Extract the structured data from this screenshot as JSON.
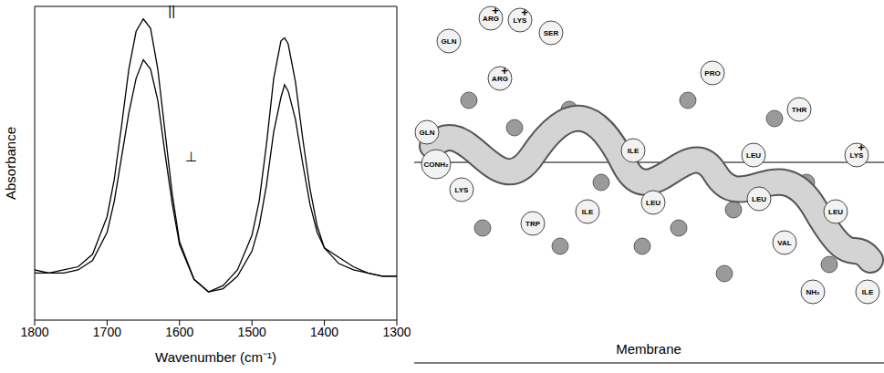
{
  "chart_data": {
    "type": "line",
    "xlabel": "Wavenumber (cm⁻¹)",
    "ylabel": "Absorbance",
    "x": [
      1800,
      1780,
      1760,
      1740,
      1720,
      1700,
      1690,
      1680,
      1670,
      1660,
      1650,
      1640,
      1630,
      1620,
      1610,
      1600,
      1580,
      1560,
      1540,
      1520,
      1500,
      1490,
      1480,
      1470,
      1460,
      1455,
      1450,
      1440,
      1430,
      1420,
      1410,
      1400,
      1380,
      1360,
      1340,
      1320,
      1300
    ],
    "series": [
      {
        "name": "||",
        "color": "#000000",
        "values": [
          0.16,
          0.15,
          0.16,
          0.17,
          0.21,
          0.33,
          0.45,
          0.62,
          0.8,
          0.92,
          0.96,
          0.93,
          0.8,
          0.6,
          0.4,
          0.25,
          0.13,
          0.09,
          0.11,
          0.16,
          0.27,
          0.38,
          0.56,
          0.77,
          0.89,
          0.9,
          0.88,
          0.76,
          0.58,
          0.42,
          0.3,
          0.23,
          0.18,
          0.16,
          0.15,
          0.14,
          0.14
        ]
      },
      {
        "name": "⊥",
        "color": "#000000",
        "values": [
          0.15,
          0.15,
          0.15,
          0.16,
          0.19,
          0.28,
          0.38,
          0.52,
          0.66,
          0.77,
          0.83,
          0.8,
          0.7,
          0.53,
          0.37,
          0.24,
          0.13,
          0.09,
          0.1,
          0.14,
          0.22,
          0.3,
          0.43,
          0.6,
          0.71,
          0.75,
          0.73,
          0.64,
          0.5,
          0.37,
          0.28,
          0.23,
          0.2,
          0.17,
          0.15,
          0.14,
          0.14
        ]
      }
    ],
    "xlim": [
      1800,
      1300
    ],
    "xticks": [
      1800,
      1700,
      1600,
      1500,
      1400,
      1300
    ],
    "ylim": [
      0,
      1
    ],
    "grid": false,
    "tick_labels": "x"
  },
  "diagram": {
    "residues": [
      {
        "text": "GLN"
      },
      {
        "text": "GLN"
      },
      {
        "text": "CONH₂"
      },
      {
        "text": "ARG",
        "charge": "+"
      },
      {
        "text": "LYS",
        "charge": "+"
      },
      {
        "text": "ARG",
        "charge": "+"
      },
      {
        "text": "SER"
      },
      {
        "text": "LYS"
      },
      {
        "text": "TRP"
      },
      {
        "text": "ILE"
      },
      {
        "text": "LEU"
      },
      {
        "text": "ILE"
      },
      {
        "text": "PRO"
      },
      {
        "text": "LEU"
      },
      {
        "text": "THR"
      },
      {
        "text": "LYS",
        "charge": "+"
      },
      {
        "text": "LEU"
      },
      {
        "text": "LEU"
      },
      {
        "text": "VAL"
      },
      {
        "text": "NH₂"
      },
      {
        "text": "ILE"
      }
    ],
    "membrane_label": "Membrane"
  }
}
